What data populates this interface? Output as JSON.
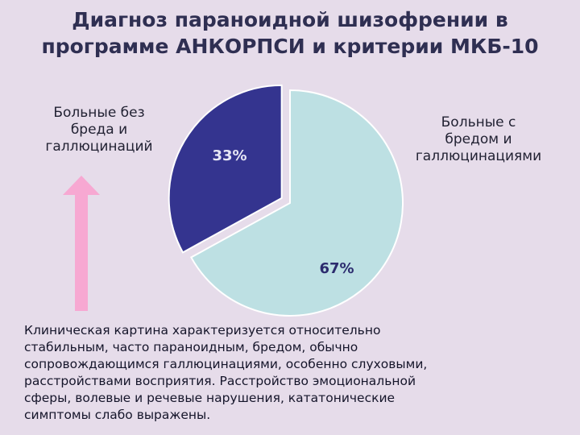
{
  "slide": {
    "title_lines": [
      "Диагноз параноидной шизофрении в",
      "программе АНКОРПСИ и критерии МКБ-10"
    ],
    "label_left_lines": [
      "Больные без",
      "бреда и",
      "галлюцинаций"
    ],
    "label_right_lines": [
      "Больные с",
      "бредом и",
      "галлюцинациями"
    ],
    "body_lines": [
      "Клиническая картина характеризуется относительно",
      "стабильным, часто параноидным, бредом, обычно",
      "сопровождающимся галлюцинациями, особенно слуховыми,",
      "расстройствами восприятия. Расстройство эмоциональной",
      "сферы, волевые и речевые нарушения, кататонические",
      "симптомы слабо выражены."
    ],
    "colors": {
      "background": "#e6dcea",
      "arrow": "#f7a8d2"
    },
    "icons": [
      "up-arrow-icon"
    ]
  },
  "chart_data": {
    "type": "pie",
    "slices": [
      {
        "label": "33%",
        "value": 33,
        "color": "#34348f",
        "exploded": true
      },
      {
        "label": "67%",
        "value": 67,
        "color": "#bde0e3",
        "exploded": false
      }
    ]
  }
}
